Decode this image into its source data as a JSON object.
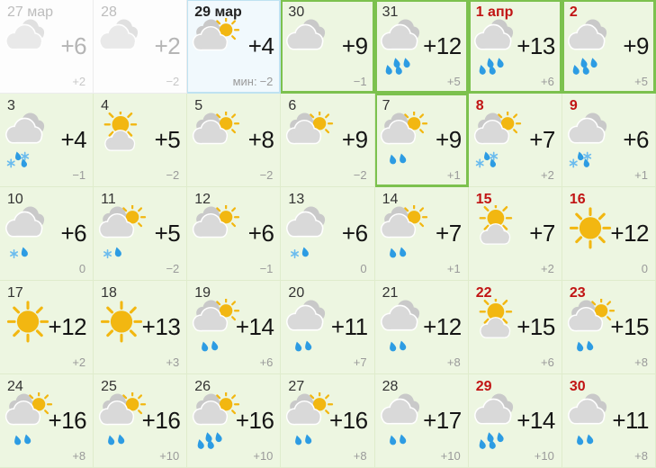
{
  "calendar": {
    "min_label": "мин:",
    "colors": {
      "future_bg": "#edf6e1",
      "past_bg": "#fdfdfd",
      "today_bg": "#f1f9fd",
      "future_line": "#dfeccc",
      "past_line": "#ececec",
      "today_border": "#bfe2f1",
      "highlight_border": "#7cc14e",
      "weekend_date": "#c11414",
      "date_text": "#333333",
      "past_text": "#bdbdbd",
      "max_temp_text": "#151515",
      "min_temp_text": "#9a9a9a"
    },
    "icon_colors": {
      "cloud_back": "#c9c9c9",
      "cloud_front": "#d9d9d9",
      "sun": "#f2b711",
      "drop": "#2d9ce3",
      "flake": "#6cbcee"
    },
    "days": [
      {
        "date": "27 мар",
        "max": "+6",
        "min": "+2",
        "icon": "cloudy",
        "type": "past",
        "weekend": false,
        "outlined": false
      },
      {
        "date": "28",
        "max": "+2",
        "min": "−2",
        "icon": "cloudy",
        "type": "past",
        "weekend": false,
        "outlined": false
      },
      {
        "date": "29 мар",
        "max": "+4",
        "min": "−2",
        "icon": "partly-cloudy",
        "type": "today",
        "weekend": false,
        "outlined": false
      },
      {
        "date": "30",
        "max": "+9",
        "min": "−1",
        "icon": "cloudy",
        "type": "future",
        "weekend": false,
        "outlined": true
      },
      {
        "date": "31",
        "max": "+12",
        "min": "+5",
        "icon": "cloudy-rain-4",
        "type": "future",
        "weekend": false,
        "outlined": true
      },
      {
        "date": "1 апр",
        "max": "+13",
        "min": "+6",
        "icon": "cloudy-rain-4",
        "type": "future",
        "weekend": true,
        "outlined": true
      },
      {
        "date": "2",
        "max": "+9",
        "min": "+5",
        "icon": "cloudy-rain-4",
        "type": "future",
        "weekend": true,
        "outlined": true
      },
      {
        "date": "3",
        "max": "+4",
        "min": "−1",
        "icon": "cloudy-sleet-4",
        "type": "future",
        "weekend": false,
        "outlined": false
      },
      {
        "date": "4",
        "max": "+5",
        "min": "−2",
        "icon": "mostly-sunny",
        "type": "future",
        "weekend": false,
        "outlined": false
      },
      {
        "date": "5",
        "max": "+8",
        "min": "−2",
        "icon": "partly-cloudy",
        "type": "future",
        "weekend": false,
        "outlined": false
      },
      {
        "date": "6",
        "max": "+9",
        "min": "−2",
        "icon": "partly-cloudy",
        "type": "future",
        "weekend": false,
        "outlined": false
      },
      {
        "date": "7",
        "max": "+9",
        "min": "+1",
        "icon": "partly-cloudy-rain-2",
        "type": "future",
        "weekend": false,
        "outlined": true
      },
      {
        "date": "8",
        "max": "+7",
        "min": "+2",
        "icon": "partly-cloudy-sleet-4",
        "type": "future",
        "weekend": true,
        "outlined": false
      },
      {
        "date": "9",
        "max": "+6",
        "min": "+1",
        "icon": "cloudy-sleet-4",
        "type": "future",
        "weekend": true,
        "outlined": false
      },
      {
        "date": "10",
        "max": "+6",
        "min": "0",
        "icon": "cloudy-sleet-2",
        "type": "future",
        "weekend": false,
        "outlined": false
      },
      {
        "date": "11",
        "max": "+5",
        "min": "−2",
        "icon": "partly-cloudy-sleet-2",
        "type": "future",
        "weekend": false,
        "outlined": false
      },
      {
        "date": "12",
        "max": "+6",
        "min": "−1",
        "icon": "partly-cloudy",
        "type": "future",
        "weekend": false,
        "outlined": false
      },
      {
        "date": "13",
        "max": "+6",
        "min": "0",
        "icon": "cloudy-sleet-2",
        "type": "future",
        "weekend": false,
        "outlined": false
      },
      {
        "date": "14",
        "max": "+7",
        "min": "+1",
        "icon": "partly-cloudy-rain-2",
        "type": "future",
        "weekend": false,
        "outlined": false
      },
      {
        "date": "15",
        "max": "+7",
        "min": "+2",
        "icon": "mostly-sunny",
        "type": "future",
        "weekend": true,
        "outlined": false
      },
      {
        "date": "16",
        "max": "+12",
        "min": "0",
        "icon": "sunny",
        "type": "future",
        "weekend": true,
        "outlined": false
      },
      {
        "date": "17",
        "max": "+12",
        "min": "+2",
        "icon": "sunny",
        "type": "future",
        "weekend": false,
        "outlined": false
      },
      {
        "date": "18",
        "max": "+13",
        "min": "+3",
        "icon": "sunny",
        "type": "future",
        "weekend": false,
        "outlined": false
      },
      {
        "date": "19",
        "max": "+14",
        "min": "+6",
        "icon": "partly-cloudy-rain-2",
        "type": "future",
        "weekend": false,
        "outlined": false
      },
      {
        "date": "20",
        "max": "+11",
        "min": "+7",
        "icon": "cloudy-rain-2",
        "type": "future",
        "weekend": false,
        "outlined": false
      },
      {
        "date": "21",
        "max": "+12",
        "min": "+8",
        "icon": "cloudy-rain-2",
        "type": "future",
        "weekend": false,
        "outlined": false
      },
      {
        "date": "22",
        "max": "+15",
        "min": "+6",
        "icon": "mostly-sunny",
        "type": "future",
        "weekend": true,
        "outlined": false
      },
      {
        "date": "23",
        "max": "+15",
        "min": "+8",
        "icon": "partly-cloudy-rain-2",
        "type": "future",
        "weekend": true,
        "outlined": false
      },
      {
        "date": "24",
        "max": "+16",
        "min": "+8",
        "icon": "partly-cloudy-rain-2",
        "type": "future",
        "weekend": false,
        "outlined": false
      },
      {
        "date": "25",
        "max": "+16",
        "min": "+10",
        "icon": "partly-cloudy-rain-2",
        "type": "future",
        "weekend": false,
        "outlined": false
      },
      {
        "date": "26",
        "max": "+16",
        "min": "+10",
        "icon": "partly-cloudy-rain-4",
        "type": "future",
        "weekend": false,
        "outlined": false
      },
      {
        "date": "27",
        "max": "+16",
        "min": "+8",
        "icon": "partly-cloudy-rain-2",
        "type": "future",
        "weekend": false,
        "outlined": false
      },
      {
        "date": "28",
        "max": "+17",
        "min": "+10",
        "icon": "cloudy-rain-2",
        "type": "future",
        "weekend": false,
        "outlined": false
      },
      {
        "date": "29",
        "max": "+14",
        "min": "+10",
        "icon": "cloudy-rain-4",
        "type": "future",
        "weekend": true,
        "outlined": false
      },
      {
        "date": "30",
        "max": "+11",
        "min": "+8",
        "icon": "cloudy-rain-2",
        "type": "future",
        "weekend": true,
        "outlined": false
      }
    ]
  }
}
